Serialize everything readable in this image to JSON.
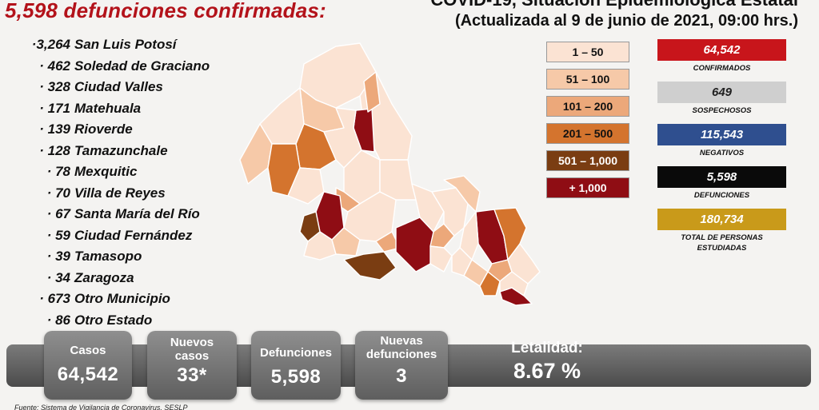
{
  "header": {
    "deaths_title": "5,598 defunciones confirmadas:",
    "right_title": "COVID-19, Situación Epidemiológica Estatal",
    "right_subtitle": "(Actualizada al 9 de junio de 2021, 09:00 hrs.)"
  },
  "municipalities": [
    {
      "value": "·3,264",
      "name": "San Luis Potosí"
    },
    {
      "value": "· 462",
      "name": "Soledad de Graciano"
    },
    {
      "value": "· 328",
      "name": "Ciudad Valles"
    },
    {
      "value": "· 171",
      "name": "Matehuala"
    },
    {
      "value": "· 139",
      "name": "Rioverde"
    },
    {
      "value": "· 128",
      "name": "Tamazunchale"
    },
    {
      "value": "· 78",
      "name": "Mexquitic"
    },
    {
      "value": "· 70",
      "name": "Villa de Reyes"
    },
    {
      "value": "· 67",
      "name": "Santa María del Río"
    },
    {
      "value": "· 59",
      "name": "Ciudad Fernández"
    },
    {
      "value": "· 39",
      "name": "Tamasopo"
    },
    {
      "value": "· 34",
      "name": "Zaragoza"
    },
    {
      "value": "· 673",
      "name": "Otro Municipio"
    },
    {
      "value": "· 86",
      "name": "Otro Estado"
    }
  ],
  "legend": [
    {
      "label": "1 – 50",
      "color": "#fbe3d3",
      "text_color": "#111"
    },
    {
      "label": "51 – 100",
      "color": "#f6c9a8",
      "text_color": "#111"
    },
    {
      "label": "101 – 200",
      "color": "#eca87a",
      "text_color": "#111"
    },
    {
      "label": "201 – 500",
      "color": "#d4742e",
      "text_color": "#111"
    },
    {
      "label": "501 – 1,000",
      "color": "#7a3d12",
      "text_color": "#fff"
    },
    {
      "label": "+ 1,000",
      "color": "#8f0d14",
      "text_color": "#fff"
    }
  ],
  "stats": [
    {
      "value": "64,542",
      "label": "CONFIRMADOS",
      "color": "#c8151b"
    },
    {
      "value": "649",
      "label": "SOSPECHOSOS",
      "color": "#cfcfcf"
    },
    {
      "value": "115,543",
      "label": "NEGATIVOS",
      "color": "#2f4f8f"
    },
    {
      "value": "5,598",
      "label": "DEFUNCIONES",
      "color": "#0a0a0a"
    },
    {
      "value": "180,734",
      "label": "TOTAL DE PERSONAS ESTUDIADAS",
      "color": "#c99a1a"
    }
  ],
  "summary": {
    "casos_label": "Casos",
    "casos_value": "64,542",
    "nuevos_label": "Nuevos casos",
    "nuevos_value": "33*",
    "def_label": "Defunciones",
    "def_value": "5,598",
    "nuevas_def_label": "Nuevas defunciones",
    "nuevas_def_value": "3",
    "letalidad_label": "Letalidad:",
    "letalidad_value": "8.67 %"
  },
  "footer": "Fuente: Sistema de Vigilancia de Coronavirus, SESLP"
}
